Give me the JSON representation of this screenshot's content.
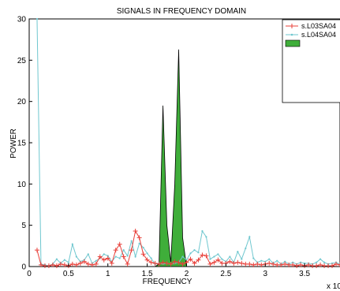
{
  "chart_data": {
    "type": "line",
    "title": "SIGNALS IN FREQUENCY DOMAIN",
    "xlabel": "FREQUENCY",
    "ylabel": "POWER",
    "x_exponent_label": "x 10",
    "xlim": [
      0,
      3.95
    ],
    "ylim": [
      0,
      30
    ],
    "x_ticks": [
      0,
      0.5,
      1,
      1.5,
      2,
      2.5,
      3,
      3.5
    ],
    "x_tick_labels": [
      "0",
      "0.5",
      "1",
      "1.5",
      "2",
      "2.5",
      "3",
      "3.5"
    ],
    "y_ticks": [
      0,
      5,
      10,
      15,
      20,
      25,
      30
    ],
    "y_tick_labels": [
      "0",
      "5",
      "10",
      "15",
      "20",
      "25",
      "30"
    ],
    "grid": false,
    "legend_position": "top-right",
    "colors": {
      "series_red": "#e8403a",
      "series_cyan": "#6fc7cf",
      "fill_green": "#3fae3a",
      "axis": "#000000"
    },
    "series": [
      {
        "name": "s.L03SA04",
        "marker": "plus",
        "x": [
          0.1,
          0.15,
          0.2,
          0.25,
          0.3,
          0.35,
          0.4,
          0.45,
          0.5,
          0.55,
          0.6,
          0.65,
          0.7,
          0.75,
          0.8,
          0.85,
          0.9,
          0.95,
          1.0,
          1.05,
          1.1,
          1.15,
          1.2,
          1.25,
          1.3,
          1.35,
          1.4,
          1.45,
          1.5,
          1.55,
          1.6,
          1.65,
          1.7,
          1.75,
          1.8,
          1.85,
          1.9,
          1.95,
          2.0,
          2.05,
          2.1,
          2.15,
          2.2,
          2.25,
          2.3,
          2.35,
          2.4,
          2.45,
          2.5,
          2.55,
          2.6,
          2.65,
          2.7,
          2.75,
          2.8,
          2.85,
          2.9,
          2.95,
          3.0,
          3.05,
          3.1,
          3.15,
          3.2,
          3.25,
          3.3,
          3.35,
          3.4,
          3.45,
          3.5,
          3.55,
          3.6,
          3.65,
          3.7,
          3.75,
          3.8,
          3.85,
          3.9,
          3.95
        ],
        "y": [
          2.0,
          0.2,
          0.1,
          0.1,
          0.2,
          0.1,
          0.3,
          0.2,
          0.1,
          0.3,
          0.2,
          0.4,
          0.6,
          0.3,
          0.2,
          0.3,
          1.2,
          0.8,
          1.0,
          0.4,
          2.0,
          2.7,
          1.2,
          0.3,
          2.0,
          4.3,
          3.5,
          1.5,
          0.8,
          0.5,
          0.4,
          0.3,
          0.5,
          0.4,
          0.3,
          0.6,
          0.5,
          0.3,
          0.5,
          0.9,
          0.4,
          0.8,
          1.4,
          1.3,
          0.3,
          0.5,
          0.8,
          0.4,
          0.4,
          0.6,
          0.4,
          0.5,
          0.4,
          0.3,
          0.3,
          0.2,
          0.3,
          0.2,
          0.3,
          0.4,
          0.3,
          0.2,
          0.2,
          0.3,
          0.2,
          0.2,
          0.1,
          0.2,
          0.1,
          0.2,
          0.1,
          0.1,
          0.2,
          0.1,
          0.1,
          0.1,
          0.3,
          0.2
        ]
      },
      {
        "name": "s.L04SA04",
        "marker": "dot",
        "x": [
          0.1,
          0.15,
          0.2,
          0.25,
          0.3,
          0.35,
          0.4,
          0.45,
          0.5,
          0.55,
          0.6,
          0.65,
          0.7,
          0.75,
          0.8,
          0.85,
          0.9,
          0.95,
          1.0,
          1.05,
          1.1,
          1.15,
          1.2,
          1.25,
          1.3,
          1.35,
          1.4,
          1.45,
          1.5,
          1.55,
          1.6,
          1.65,
          1.7,
          1.75,
          1.8,
          1.85,
          1.9,
          1.95,
          2.0,
          2.05,
          2.1,
          2.15,
          2.2,
          2.25,
          2.3,
          2.35,
          2.4,
          2.45,
          2.5,
          2.55,
          2.6,
          2.65,
          2.7,
          2.75,
          2.8,
          2.85,
          2.9,
          2.95,
          3.0,
          3.05,
          3.1,
          3.15,
          3.2,
          3.25,
          3.3,
          3.35,
          3.4,
          3.45,
          3.5,
          3.55,
          3.6,
          3.65,
          3.7,
          3.75,
          3.8,
          3.85,
          3.9,
          3.95
        ],
        "y": [
          30.0,
          0.3,
          0.2,
          0.1,
          0.3,
          0.9,
          0.4,
          0.8,
          0.5,
          2.7,
          1.2,
          0.6,
          0.8,
          1.5,
          0.4,
          0.7,
          1.0,
          1.5,
          1.3,
          0.6,
          1.2,
          1.0,
          2.0,
          1.3,
          3.1,
          1.2,
          2.8,
          2.3,
          1.6,
          1.0,
          0.3,
          0.4,
          0.3,
          0.4,
          0.3,
          0.4,
          0.5,
          1.2,
          0.8,
          1.6,
          2.0,
          1.7,
          4.3,
          3.6,
          0.9,
          1.2,
          1.5,
          0.9,
          0.6,
          1.2,
          0.5,
          1.8,
          0.9,
          2.2,
          3.6,
          1.0,
          0.5,
          0.7,
          0.6,
          0.9,
          0.4,
          0.7,
          0.3,
          0.6,
          0.3,
          0.5,
          0.3,
          0.5,
          0.4,
          0.4,
          0.3,
          0.5,
          0.9,
          0.5,
          0.3,
          0.4,
          0.5,
          0.3
        ]
      },
      {
        "name": "",
        "kind": "filled-area",
        "x": [
          1.55,
          1.6,
          1.65,
          1.7,
          1.75,
          1.8,
          1.85,
          1.9,
          1.95,
          2.0
        ],
        "y": [
          0.0,
          0.0,
          0.3,
          19.5,
          5.0,
          0.5,
          10.0,
          26.3,
          3.5,
          0.0
        ]
      }
    ]
  }
}
